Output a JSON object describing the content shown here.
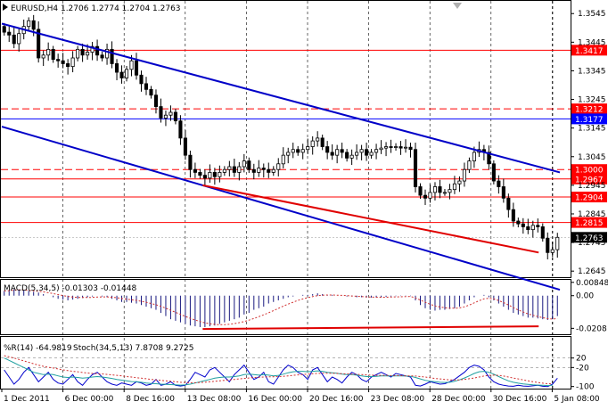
{
  "chart_data": {
    "type": "candlestick",
    "symbol_header": "EURUSD,H4  1.2706 1.2774 1.2704 1.2763",
    "x_ticks": [
      "1 Dec 2011",
      "6 Dec 00:00",
      "8 Dec 16:00",
      "13 Dec 08:00",
      "16 Dec 00:00",
      "20 Dec 16:00",
      "23 Dec 08:00",
      "28 Dec 00:00",
      "30 Dec 16:00",
      "5 Jan 08:00"
    ],
    "y_ticks": [
      "1.3545",
      "1.3445",
      "1.3345",
      "1.3245",
      "1.3145",
      "1.3045",
      "1.2945",
      "1.2845",
      "1.2745",
      "1.2645"
    ],
    "ylim": [
      1.263,
      1.358
    ],
    "last_price": "1.2763",
    "level_lines": [
      {
        "label": "1.3417",
        "value": 1.3417,
        "style": "solid",
        "color": "#ff0000"
      },
      {
        "label": "1.3212",
        "value": 1.3212,
        "style": "dashed",
        "color": "#ff0000"
      },
      {
        "label": "1.3177",
        "value": 1.3177,
        "style": "solid",
        "color": "#0000ff"
      },
      {
        "label": "1.3000",
        "value": 1.3,
        "style": "dashed",
        "color": "#ff0000"
      },
      {
        "label": "1.2967",
        "value": 1.2967,
        "style": "solid",
        "color": "#ff0000"
      },
      {
        "label": "1.2904",
        "value": 1.2904,
        "style": "solid",
        "color": "#ff0000"
      },
      {
        "label": "1.2815",
        "value": 1.2815,
        "style": "solid",
        "color": "#ff0000"
      }
    ],
    "closes": [
      1.348,
      1.347,
      1.344,
      1.3475,
      1.35,
      1.352,
      1.349,
      1.339,
      1.34,
      1.342,
      1.3385,
      1.338,
      1.337,
      1.336,
      1.339,
      1.342,
      1.34,
      1.341,
      1.343,
      1.34,
      1.339,
      1.342,
      1.337,
      1.334,
      1.332,
      1.335,
      1.338,
      1.333,
      1.33,
      1.328,
      1.326,
      1.322,
      1.318,
      1.319,
      1.32,
      1.317,
      1.311,
      1.305,
      1.3,
      1.299,
      1.298,
      1.297,
      1.299,
      1.2975,
      1.299,
      1.3,
      1.301,
      1.299,
      1.301,
      1.303,
      1.3,
      1.299,
      1.3005,
      1.3,
      1.299,
      1.3,
      1.302,
      1.305,
      1.306,
      1.307,
      1.306,
      1.307,
      1.308,
      1.31,
      1.311,
      1.308,
      1.306,
      1.305,
      1.307,
      1.306,
      1.304,
      1.305,
      1.306,
      1.307,
      1.305,
      1.306,
      1.307,
      1.3075,
      1.308,
      1.3078,
      1.308,
      1.3075,
      1.3078,
      1.307,
      1.294,
      1.291,
      1.29,
      1.292,
      1.294,
      1.292,
      1.292,
      1.293,
      1.295,
      1.296,
      1.3,
      1.303,
      1.306,
      1.307,
      1.306,
      1.302,
      1.296,
      1.294,
      1.29,
      1.286,
      1.282,
      1.281,
      1.28,
      1.279,
      1.2805,
      1.28,
      1.276,
      1.271,
      1.272,
      1.2763
    ],
    "trendlines": [
      {
        "name": "channel-upper",
        "color": "#0000c8",
        "x1f": 0.0,
        "y1": 1.351,
        "x2f": 1.0,
        "y2": 1.299
      },
      {
        "name": "channel-lower",
        "color": "#0000c8",
        "x1f": 0.0,
        "y1": 1.315,
        "x2f": 1.0,
        "y2": 1.258
      },
      {
        "name": "red-support",
        "color": "#e00000",
        "x1f": 0.36,
        "y1": 1.2945,
        "x2f": 0.962,
        "y2": 1.271
      }
    ],
    "macd": {
      "label": "MACD(5,34,5) -0.01303 -0.01448",
      "y_ticks": [
        "0.00848",
        "0.00",
        "-0.0208"
      ],
      "ylim": [
        -0.024,
        0.0095
      ],
      "hist": [
        0.003,
        0.0035,
        0.004,
        0.004,
        0.0035,
        0.003,
        0.0025,
        0.002,
        0.001,
        0.0,
        -0.001,
        -0.002,
        -0.0025,
        -0.003,
        -0.0025,
        -0.002,
        -0.0015,
        -0.001,
        -0.0005,
        0.0,
        -0.0005,
        -0.001,
        -0.002,
        -0.003,
        -0.004,
        -0.004,
        -0.0045,
        -0.005,
        -0.006,
        -0.007,
        -0.008,
        -0.009,
        -0.011,
        -0.013,
        -0.015,
        -0.016,
        -0.017,
        -0.018,
        -0.019,
        -0.0195,
        -0.02,
        -0.02,
        -0.0195,
        -0.019,
        -0.018,
        -0.017,
        -0.016,
        -0.015,
        -0.014,
        -0.012,
        -0.011,
        -0.009,
        -0.008,
        -0.007,
        -0.005,
        -0.004,
        -0.003,
        -0.002,
        -0.001,
        -0.0005,
        0.0,
        0.0005,
        0.0005,
        0.001,
        0.0015,
        0.001,
        0.0005,
        0.0005,
        0.0,
        0.0,
        -0.0005,
        -0.0005,
        -0.001,
        -0.001,
        -0.0012,
        -0.0012,
        -0.0012,
        -0.001,
        -0.0008,
        -0.0005,
        -0.0003,
        -0.0002,
        -0.0002,
        -0.0003,
        -0.003,
        -0.006,
        -0.008,
        -0.009,
        -0.0095,
        -0.009,
        -0.009,
        -0.0085,
        -0.008,
        -0.007,
        -0.005,
        -0.003,
        -0.001,
        0.0,
        0.0005,
        -0.001,
        -0.003,
        -0.005,
        -0.007,
        -0.009,
        -0.011,
        -0.012,
        -0.013,
        -0.014,
        -0.014,
        -0.0145,
        -0.015,
        -0.0155,
        -0.015,
        -0.013
      ],
      "signal": [
        0.003,
        0.0032,
        0.0035,
        0.0037,
        0.0036,
        0.0034,
        0.0031,
        0.0028,
        0.0024,
        0.0019,
        0.0013,
        0.0007,
        0.0001,
        -0.0005,
        -0.0009,
        -0.0011,
        -0.0012,
        -0.0012,
        -0.0011,
        -0.0009,
        -0.0008,
        -0.0008,
        -0.001,
        -0.0013,
        -0.0018,
        -0.0022,
        -0.0026,
        -0.003,
        -0.0036,
        -0.0042,
        -0.005,
        -0.0058,
        -0.0068,
        -0.008,
        -0.0093,
        -0.0106,
        -0.0119,
        -0.0132,
        -0.0144,
        -0.0155,
        -0.0165,
        -0.0173,
        -0.0179,
        -0.0183,
        -0.0185,
        -0.0185,
        -0.0182,
        -0.0178,
        -0.0172,
        -0.0165,
        -0.0156,
        -0.0145,
        -0.0134,
        -0.0122,
        -0.0109,
        -0.0095,
        -0.0081,
        -0.0067,
        -0.0054,
        -0.0042,
        -0.003,
        -0.0021,
        -0.0013,
        -0.0006,
        0.0,
        0.0003,
        0.0004,
        0.0004,
        0.0003,
        0.0002,
        0.0,
        -0.0002,
        -0.0004,
        -0.0006,
        -0.0008,
        -0.0009,
        -0.001,
        -0.001,
        -0.001,
        -0.0009,
        -0.0008,
        -0.0007,
        -0.0006,
        -0.0005,
        -0.0014,
        -0.0028,
        -0.0042,
        -0.0055,
        -0.0065,
        -0.0072,
        -0.0077,
        -0.008,
        -0.008,
        -0.0078,
        -0.0071,
        -0.006,
        -0.0046,
        -0.0032,
        -0.002,
        -0.0017,
        -0.0021,
        -0.0031,
        -0.0044,
        -0.0059,
        -0.0076,
        -0.0091,
        -0.0104,
        -0.0116,
        -0.0125,
        -0.0133,
        -0.014,
        -0.0146,
        -0.0149,
        -0.0145
      ],
      "trendline": {
        "color": "#e00000",
        "x1f": 0.36,
        "y1": -0.0212,
        "x2f": 0.962,
        "y2": -0.0195
      }
    },
    "stoch": {
      "label_wpr": "%R(14) -64.9819",
      "label_stoch": "Stoch(34,5,13) 7.8708 9.2725",
      "y_ticks": [
        "-20",
        "20",
        "-100"
      ],
      "ylim": [
        -105,
        105
      ],
      "wpr": [
        -30,
        -60,
        -90,
        -70,
        -40,
        -20,
        -50,
        -80,
        -60,
        -40,
        -70,
        -85,
        -90,
        -70,
        -50,
        -80,
        -95,
        -70,
        -50,
        -40,
        -60,
        -80,
        -90,
        -95,
        -85,
        -90,
        -95,
        -80,
        -85,
        -95,
        -90,
        -70,
        -95,
        -90,
        -80,
        -95,
        -98,
        -95,
        -70,
        -40,
        -50,
        -60,
        -30,
        -20,
        -40,
        -60,
        -80,
        -50,
        -30,
        -10,
        -40,
        -70,
        -60,
        -40,
        -80,
        -90,
        -60,
        -30,
        -10,
        -20,
        -40,
        -50,
        -70,
        -30,
        -20,
        -50,
        -80,
        -60,
        -70,
        -85,
        -60,
        -40,
        -50,
        -70,
        -80,
        -60,
        -50,
        -40,
        -50,
        -60,
        -45,
        -50,
        -55,
        -60,
        -95,
        -98,
        -90,
        -80,
        -85,
        -90,
        -88,
        -80,
        -70,
        -55,
        -40,
        -20,
        -10,
        -15,
        -30,
        -60,
        -80,
        -90,
        -95,
        -98,
        -99,
        -95,
        -98,
        -99,
        -97,
        -95,
        -99,
        -100,
        -90,
        -64.98
      ],
      "main": [
        20,
        10,
        0,
        -10,
        -20,
        -30,
        -40,
        -45,
        -50,
        -48,
        -50,
        -55,
        -60,
        -62,
        -60,
        -62,
        -65,
        -63,
        -60,
        -58,
        -60,
        -63,
        -66,
        -70,
        -73,
        -76,
        -79,
        -80,
        -82,
        -85,
        -87,
        -88,
        -90,
        -91,
        -92,
        -93,
        -94,
        -93,
        -90,
        -85,
        -80,
        -75,
        -70,
        -65,
        -62,
        -60,
        -60,
        -58,
        -55,
        -50,
        -48,
        -50,
        -52,
        -50,
        -52,
        -55,
        -53,
        -48,
        -42,
        -38,
        -36,
        -36,
        -38,
        -36,
        -34,
        -36,
        -40,
        -42,
        -44,
        -48,
        -50,
        -50,
        -52,
        -55,
        -58,
        -58,
        -57,
        -55,
        -55,
        -56,
        -55,
        -55,
        -56,
        -57,
        -62,
        -68,
        -74,
        -78,
        -80,
        -82,
        -83,
        -82,
        -78,
        -72,
        -64,
        -55,
        -45,
        -38,
        -36,
        -40,
        -48,
        -58,
        -68,
        -76,
        -82,
        -86,
        -89,
        -91,
        -93,
        -94,
        -95,
        -96,
        -95,
        7.87
      ],
      "signal": [
        30,
        25,
        20,
        14,
        8,
        2,
        -4,
        -10,
        -15,
        -19,
        -22,
        -26,
        -30,
        -33,
        -36,
        -38,
        -41,
        -43,
        -45,
        -46,
        -47,
        -49,
        -51,
        -53,
        -55,
        -58,
        -60,
        -63,
        -65,
        -67,
        -70,
        -72,
        -74,
        -76,
        -78,
        -80,
        -82,
        -83,
        -84,
        -84,
        -83,
        -82,
        -80,
        -78,
        -76,
        -74,
        -72,
        -70,
        -68,
        -66,
        -64,
        -62,
        -61,
        -60,
        -59,
        -59,
        -58,
        -57,
        -55,
        -53,
        -51,
        -49,
        -48,
        -46,
        -45,
        -44,
        -44,
        -44,
        -45,
        -46,
        -47,
        -48,
        -49,
        -50,
        -51,
        -52,
        -53,
        -53,
        -53,
        -54,
        -54,
        -54,
        -55,
        -55,
        -56,
        -58,
        -60,
        -63,
        -66,
        -68,
        -70,
        -72,
        -72,
        -72,
        -70,
        -67,
        -64,
        -60,
        -56,
        -53,
        -52,
        -53,
        -56,
        -60,
        -64,
        -68,
        -72,
        -76,
        -80,
        -83,
        -86,
        -88,
        -89,
        9.27
      ]
    }
  }
}
